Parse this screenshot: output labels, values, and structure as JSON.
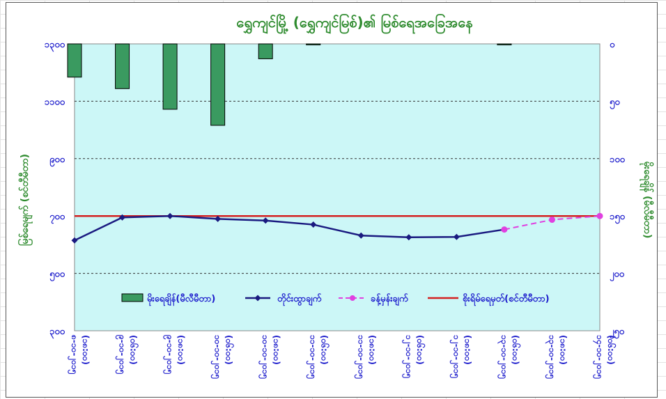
{
  "chart_data": {
    "type": "bar+line",
    "title": "ရွှေကျင်မြို့ (ရွှေကျင်မြစ်)၏ မြစ်ရေအခြေအနေ",
    "ylabel_left": "မြစ်ရေမျက် (စင်တီမီတာ)",
    "ylabel_right": "မိုးရေချိန် (မီလီမီတာ)",
    "left_axis": {
      "ticks": [
        "၁၃၀၀",
        "၁၁၀၀",
        "၉၀၀",
        "၇၀၀",
        "၅၀၀",
        "၃၀၀"
      ],
      "values": [
        1300,
        1100,
        900,
        700,
        500,
        300
      ],
      "ylim": [
        300,
        1300
      ]
    },
    "right_axis": {
      "ticks": [
        "၀",
        "၅၀",
        "၁၀၀",
        "၁၅၀",
        "၂၀၀",
        "၂၅၀"
      ],
      "values": [
        0,
        50,
        100,
        150,
        200,
        250
      ],
      "ylim": [
        0,
        250
      ],
      "inverted": true
    },
    "categories": [
      "၈-၁၀-၂၀၁၅ (၁၈:၀၀)",
      "၉-၁၀-၂၀၁၅ (၀၆:၀၀)",
      "၉-၁၀-၂၀၁၅ (၁၈:၀၀)",
      "၁၀-၁၀-၂၀၁၅ (၀၆:၀၀)",
      "၁၀-၁၀-၂၀၁၅ (၁၈:၀၀)",
      "၁၁-၁၀-၂၀၁၅ (၀၆:၀၀)",
      "၁၁-၁၀-၂၀၁၅ (၁၈:၀၀)",
      "၁၂-၁၀-၂၀၁၅ (၀၆:၀၀)",
      "၁၂-၁၀-၂၀၁၅ (၁၈:၀၀)",
      "၁၃-၁၀-၂၀၁၅ (၀၆:၀၀)",
      "၁၃-၁၀-၂၀၁၅ (၁၈:၀၀)",
      "၁၄-၁၀-၂၀၁၅ (၀၆:၀၀)"
    ],
    "series": [
      {
        "name": "မိုးရေချိန်(မီလီမီတာ)",
        "type": "bar",
        "axis": "right",
        "color": "#3a9a60",
        "values": [
          29,
          39,
          57,
          71,
          13,
          0,
          null,
          null,
          null,
          0,
          null,
          null
        ]
      },
      {
        "name": "တိုင်းထွာချက်",
        "type": "line",
        "axis": "left",
        "color": "#1a1a80",
        "values": [
          615,
          695,
          700,
          690,
          684,
          670,
          632,
          626,
          627,
          653,
          null,
          null
        ]
      },
      {
        "name": "ခန့်မှန်းချက်",
        "type": "line-dashed",
        "axis": "left",
        "color": "#e040e0",
        "values": [
          null,
          null,
          null,
          null,
          null,
          null,
          null,
          null,
          null,
          653,
          687,
          700
        ]
      },
      {
        "name": "စိုးရိမ်ရေမှတ်(စင်တီမီတာ)",
        "type": "hline",
        "axis": "left",
        "color": "#d42020",
        "value": 700
      }
    ],
    "grid": true,
    "legend_position": "bottom-inside",
    "plot_background": "#ccf7f7"
  }
}
